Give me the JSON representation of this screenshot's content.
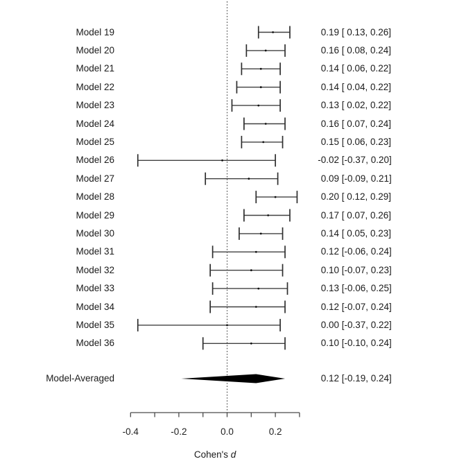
{
  "figure": {
    "background": "#ffffff",
    "line_color": "#404040",
    "cap_color": "#2e2e2e",
    "text_color": "#1a1a1a",
    "diamond_color": "#000000"
  },
  "chart_data": {
    "type": "scatter",
    "variant": "forest-plot",
    "title": "",
    "xlabel": "Cohen's d",
    "xlabel_parts": {
      "regular": "Cohen's ",
      "italic": "d"
    },
    "xlim": [
      -0.45,
      0.32
    ],
    "axis_range_drawn": [
      -0.4,
      0.3
    ],
    "x_ticks": [
      -0.4,
      -0.3,
      -0.2,
      -0.1,
      0.0,
      0.1,
      0.2,
      0.3
    ],
    "x_tick_labels": [
      {
        "value": -0.4,
        "label": "-0.4"
      },
      {
        "value": -0.2,
        "label": "-0.2"
      },
      {
        "value": 0.0,
        "label": "0.0"
      },
      {
        "value": 0.2,
        "label": "0.2"
      }
    ],
    "reference_line_x": 0,
    "grid": false,
    "legend": false,
    "rows": [
      {
        "label": "Model 19",
        "est": 0.19,
        "lower": 0.13,
        "upper": 0.26,
        "est_text": "0.19",
        "ci_text": " [ 0.13, 0.26]"
      },
      {
        "label": "Model 20",
        "est": 0.16,
        "lower": 0.08,
        "upper": 0.24,
        "est_text": "0.16",
        "ci_text": " [ 0.08, 0.24]"
      },
      {
        "label": "Model 21",
        "est": 0.14,
        "lower": 0.06,
        "upper": 0.22,
        "est_text": "0.14",
        "ci_text": " [ 0.06, 0.22]"
      },
      {
        "label": "Model 22",
        "est": 0.14,
        "lower": 0.04,
        "upper": 0.22,
        "est_text": "0.14",
        "ci_text": " [ 0.04, 0.22]"
      },
      {
        "label": "Model 23",
        "est": 0.13,
        "lower": 0.02,
        "upper": 0.22,
        "est_text": "0.13",
        "ci_text": " [ 0.02, 0.22]"
      },
      {
        "label": "Model 24",
        "est": 0.16,
        "lower": 0.07,
        "upper": 0.24,
        "est_text": "0.16",
        "ci_text": " [ 0.07, 0.24]"
      },
      {
        "label": "Model 25",
        "est": 0.15,
        "lower": 0.06,
        "upper": 0.23,
        "est_text": "0.15",
        "ci_text": " [ 0.06, 0.23]"
      },
      {
        "label": "Model 26",
        "est": -0.02,
        "lower": -0.37,
        "upper": 0.2,
        "est_text": "-0.02",
        "ci_text": " [-0.37, 0.20]"
      },
      {
        "label": "Model 27",
        "est": 0.09,
        "lower": -0.09,
        "upper": 0.21,
        "est_text": "0.09",
        "ci_text": " [-0.09, 0.21]"
      },
      {
        "label": "Model 28",
        "est": 0.2,
        "lower": 0.12,
        "upper": 0.29,
        "est_text": "0.20",
        "ci_text": " [ 0.12, 0.29]"
      },
      {
        "label": "Model 29",
        "est": 0.17,
        "lower": 0.07,
        "upper": 0.26,
        "est_text": "0.17",
        "ci_text": " [ 0.07, 0.26]"
      },
      {
        "label": "Model 30",
        "est": 0.14,
        "lower": 0.05,
        "upper": 0.23,
        "est_text": "0.14",
        "ci_text": " [ 0.05, 0.23]"
      },
      {
        "label": "Model 31",
        "est": 0.12,
        "lower": -0.06,
        "upper": 0.24,
        "est_text": "0.12",
        "ci_text": " [-0.06, 0.24]"
      },
      {
        "label": "Model 32",
        "est": 0.1,
        "lower": -0.07,
        "upper": 0.23,
        "est_text": "0.10",
        "ci_text": " [-0.07, 0.23]"
      },
      {
        "label": "Model 33",
        "est": 0.13,
        "lower": -0.06,
        "upper": 0.25,
        "est_text": "0.13",
        "ci_text": " [-0.06, 0.25]"
      },
      {
        "label": "Model 34",
        "est": 0.12,
        "lower": -0.07,
        "upper": 0.24,
        "est_text": "0.12",
        "ci_text": " [-0.07, 0.24]"
      },
      {
        "label": "Model 35",
        "est": 0.0,
        "lower": -0.37,
        "upper": 0.22,
        "est_text": "0.00",
        "ci_text": " [-0.37, 0.22]"
      },
      {
        "label": "Model 36",
        "est": 0.1,
        "lower": -0.1,
        "upper": 0.24,
        "est_text": "0.10",
        "ci_text": " [-0.10, 0.24]"
      }
    ],
    "summary": {
      "label": "Model-Averaged",
      "est": 0.12,
      "lower": -0.19,
      "upper": 0.24,
      "est_text": "0.12",
      "ci_text": " [-0.19, 0.24]"
    }
  }
}
